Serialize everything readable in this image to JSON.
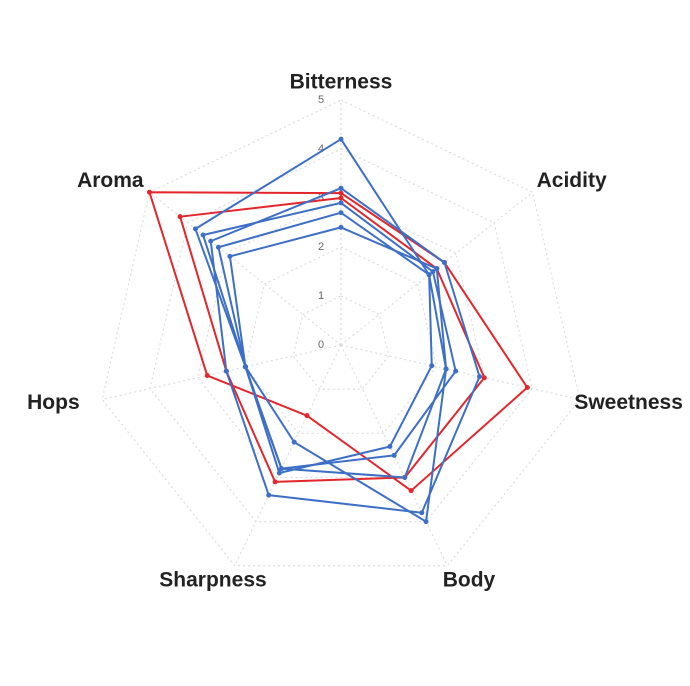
{
  "chart_data": {
    "type": "radar",
    "categories": [
      "Bitterness",
      "Acidity",
      "Sweetness",
      "Body",
      "Sharpness",
      "Hops",
      "Aroma"
    ],
    "rlim": [
      0,
      5
    ],
    "rticks": [
      0,
      1,
      2,
      3,
      4,
      5
    ],
    "grid": true,
    "series": [
      {
        "color": "#e3262b",
        "values": [
          3.1,
          2.7,
          3.9,
          3.3,
          1.6,
          2.8,
          5.0
        ]
      },
      {
        "color": "#e3262b",
        "values": [
          3.0,
          2.5,
          3.0,
          3.0,
          3.1,
          2.4,
          4.2
        ]
      },
      {
        "color": "#3d6fc6",
        "values": [
          4.2,
          2.3,
          2.2,
          4.0,
          2.2,
          2.0,
          3.8
        ]
      },
      {
        "color": "#3d6fc6",
        "values": [
          3.2,
          2.7,
          2.9,
          3.8,
          3.4,
          2.4,
          3.4
        ]
      },
      {
        "color": "#3d6fc6",
        "values": [
          2.9,
          2.4,
          2.4,
          2.5,
          2.8,
          2.0,
          3.6
        ]
      },
      {
        "color": "#3d6fc6",
        "values": [
          2.7,
          2.3,
          1.9,
          2.3,
          2.9,
          2.0,
          3.2
        ]
      },
      {
        "color": "#3d6fc6",
        "values": [
          2.4,
          2.5,
          2.2,
          3.0,
          2.8,
          2.0,
          2.9
        ]
      }
    ]
  }
}
